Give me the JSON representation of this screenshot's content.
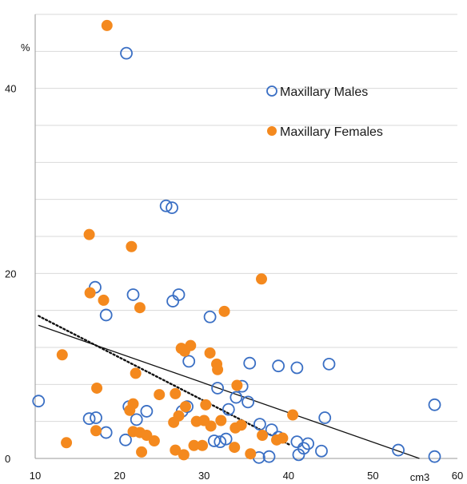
{
  "chart_data": {
    "type": "scatter",
    "title": "",
    "xlabel": "",
    "ylabel": "",
    "x_unit_label": "cm3",
    "y_unit_label": "%",
    "xlim": [
      10,
      60
    ],
    "ylim": [
      0,
      48
    ],
    "x_ticks": [
      10,
      20,
      30,
      40,
      50,
      60
    ],
    "y_ticks": [
      0,
      20,
      40
    ],
    "y_tick_labels": [
      "0",
      "20",
      "40"
    ],
    "x_tick_labels": [
      "10",
      "20",
      "30",
      "40",
      "50",
      "60"
    ],
    "grid": true,
    "legend_position": "top-right",
    "series": [
      {
        "name": "Maxillary Males",
        "marker": "open-circle",
        "color": "#3a6fc4",
        "points": [
          [
            20.8,
            43.8
          ],
          [
            25.5,
            27.3
          ],
          [
            26.2,
            27.1
          ],
          [
            17.1,
            18.5
          ],
          [
            21.6,
            17.7
          ],
          [
            27.0,
            17.7
          ],
          [
            26.3,
            17.0
          ],
          [
            18.4,
            15.5
          ],
          [
            30.7,
            15.3
          ],
          [
            28.2,
            10.5
          ],
          [
            35.4,
            10.3
          ],
          [
            38.8,
            10.0
          ],
          [
            41.0,
            9.8
          ],
          [
            44.8,
            10.2
          ],
          [
            34.5,
            7.8
          ],
          [
            31.6,
            7.6
          ],
          [
            33.8,
            6.6
          ],
          [
            10.4,
            6.2
          ],
          [
            28.0,
            5.6
          ],
          [
            21.1,
            5.6
          ],
          [
            27.4,
            5.1
          ],
          [
            32.9,
            5.3
          ],
          [
            23.2,
            5.1
          ],
          [
            35.2,
            6.1
          ],
          [
            16.4,
            4.3
          ],
          [
            17.2,
            4.4
          ],
          [
            22.0,
            4.2
          ],
          [
            36.6,
            3.7
          ],
          [
            38.0,
            3.1
          ],
          [
            38.8,
            2.3
          ],
          [
            44.3,
            4.4
          ],
          [
            41.0,
            1.8
          ],
          [
            42.3,
            1.6
          ],
          [
            18.4,
            2.8
          ],
          [
            20.7,
            2.0
          ],
          [
            31.2,
            1.9
          ],
          [
            31.9,
            1.8
          ],
          [
            32.6,
            2.1
          ],
          [
            41.8,
            1.1
          ],
          [
            43.9,
            0.8
          ],
          [
            53.0,
            0.9
          ],
          [
            57.3,
            5.8
          ],
          [
            41.2,
            0.4
          ],
          [
            36.5,
            0.1
          ],
          [
            37.7,
            0.2
          ],
          [
            57.3,
            0.2
          ]
        ]
      },
      {
        "name": "Maxillary Females",
        "marker": "filled-circle",
        "color": "#f4891e",
        "points": [
          [
            18.5,
            46.8
          ],
          [
            16.4,
            24.2
          ],
          [
            21.4,
            22.9
          ],
          [
            36.8,
            19.4
          ],
          [
            16.5,
            17.9
          ],
          [
            18.1,
            17.1
          ],
          [
            22.4,
            16.3
          ],
          [
            32.4,
            15.9
          ],
          [
            13.2,
            11.2
          ],
          [
            28.4,
            12.2
          ],
          [
            27.7,
            11.6
          ],
          [
            27.3,
            11.9
          ],
          [
            30.7,
            11.4
          ],
          [
            31.5,
            10.2
          ],
          [
            31.6,
            9.6
          ],
          [
            21.9,
            9.2
          ],
          [
            33.9,
            7.9
          ],
          [
            17.3,
            7.6
          ],
          [
            24.7,
            6.9
          ],
          [
            26.6,
            7.0
          ],
          [
            27.8,
            5.6
          ],
          [
            21.6,
            5.9
          ],
          [
            30.2,
            5.8
          ],
          [
            21.2,
            5.2
          ],
          [
            40.5,
            4.7
          ],
          [
            27.0,
            4.6
          ],
          [
            26.4,
            3.9
          ],
          [
            29.1,
            4.0
          ],
          [
            30.0,
            4.1
          ],
          [
            32.0,
            4.1
          ],
          [
            30.8,
            3.5
          ],
          [
            33.7,
            3.3
          ],
          [
            34.4,
            3.6
          ],
          [
            36.9,
            2.5
          ],
          [
            21.6,
            2.9
          ],
          [
            22.4,
            2.8
          ],
          [
            23.2,
            2.5
          ],
          [
            24.1,
            1.9
          ],
          [
            17.2,
            3.0
          ],
          [
            13.7,
            1.7
          ],
          [
            28.8,
            1.4
          ],
          [
            29.8,
            1.4
          ],
          [
            33.6,
            1.2
          ],
          [
            26.6,
            0.9
          ],
          [
            22.6,
            0.7
          ],
          [
            27.6,
            0.4
          ],
          [
            35.5,
            0.5
          ],
          [
            38.6,
            2.0
          ],
          [
            39.3,
            2.2
          ]
        ]
      }
    ],
    "trendlines": [
      {
        "series": "Maxillary Males",
        "style": "solid",
        "x": [
          10.4,
          55.5
        ],
        "y": [
          14.4,
          0.0
        ]
      },
      {
        "series": "Maxillary Females",
        "style": "dotted",
        "x": [
          10.4,
          40.3
        ],
        "y": [
          15.4,
          1.4
        ]
      }
    ]
  }
}
